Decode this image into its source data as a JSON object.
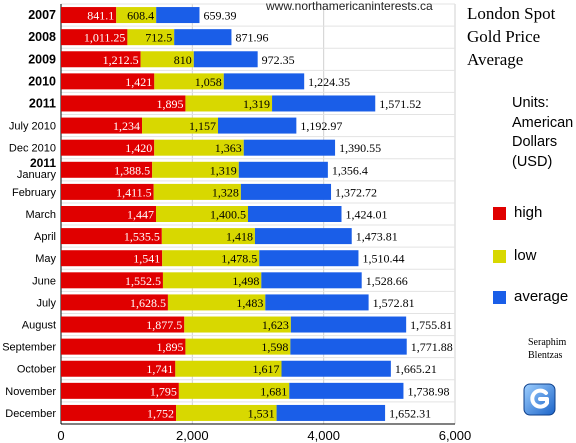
{
  "watermark": "www.northamericaninterests.ca",
  "title_lines": [
    "London Spot",
    "Gold Price",
    "Average"
  ],
  "units_lines": [
    "Units:",
    "American",
    "Dollars",
    "(USD)"
  ],
  "author_lines": [
    "Seraphim",
    "Blentzas"
  ],
  "legend": [
    {
      "label": "high",
      "color": "#e00000"
    },
    {
      "label": "low",
      "color": "#d8d800"
    },
    {
      "label": "average",
      "color": "#1a5ee8"
    }
  ],
  "chart_data": {
    "type": "bar",
    "orientation": "horizontal",
    "stacked": true,
    "categories": [
      {
        "label": "2007",
        "bold": true
      },
      {
        "label": "2008",
        "bold": true
      },
      {
        "label": "2009",
        "bold": true
      },
      {
        "label": "2010",
        "bold": true
      },
      {
        "label": "2011",
        "bold": true
      },
      {
        "label": "July 2010",
        "bold": false
      },
      {
        "label": "Dec 2010",
        "bold": false
      },
      {
        "label": "January",
        "label_top": "2011",
        "bold": false
      },
      {
        "label": "February",
        "bold": false
      },
      {
        "label": "March",
        "bold": false
      },
      {
        "label": "April",
        "bold": false
      },
      {
        "label": "May",
        "bold": false
      },
      {
        "label": "June",
        "bold": false
      },
      {
        "label": "July",
        "bold": false
      },
      {
        "label": "August",
        "bold": false
      },
      {
        "label": "September",
        "bold": false
      },
      {
        "label": "October",
        "bold": false
      },
      {
        "label": "November",
        "bold": false
      },
      {
        "label": "December",
        "bold": false
      }
    ],
    "series": [
      {
        "name": "high",
        "color": "#e00000",
        "values": [
          841.1,
          1011.25,
          1212.5,
          1421,
          1895,
          1234,
          1420,
          1388.5,
          1411.5,
          1447,
          1535.5,
          1541,
          1552.5,
          1628.5,
          1877.5,
          1895,
          1741,
          1795,
          1752
        ],
        "labels": [
          "841.1",
          "1,011.25",
          "1,212.5",
          "1,421",
          "1,895",
          "1,234",
          "1,420",
          "1,388.5",
          "1,411.5",
          "1,447",
          "1,535.5",
          "1,541",
          "1,552.5",
          "1,628.5",
          "1,877.5",
          "1,895",
          "1,741",
          "1,795",
          "1,752"
        ]
      },
      {
        "name": "low",
        "color": "#d8d800",
        "values": [
          608.4,
          712.5,
          810,
          1058,
          1319,
          1157,
          1363,
          1319,
          1328,
          1400.5,
          1418,
          1478.5,
          1498,
          1483,
          1623,
          1598,
          1617,
          1681,
          1531
        ],
        "labels": [
          "608.4",
          "712.5",
          "810",
          "1,058",
          "1,319",
          "1,157",
          "1,363",
          "1,319",
          "1,328",
          "1,400.5",
          "1,418",
          "1,478.5",
          "1,498",
          "1,483",
          "1,623",
          "1,598",
          "1,617",
          "1,681",
          "1,531"
        ]
      },
      {
        "name": "average",
        "color": "#1a5ee8",
        "values": [
          659.39,
          871.96,
          972.35,
          1224.35,
          1571.52,
          1192.97,
          1390.55,
          1356.4,
          1372.72,
          1424.01,
          1473.81,
          1510.44,
          1528.66,
          1572.81,
          1755.81,
          1771.88,
          1665.21,
          1738.98,
          1652.31
        ],
        "labels": [
          "659.39",
          "871.96",
          "972.35",
          "1,224.35",
          "1,571.52",
          "1,192.97",
          "1,390.55",
          "1,356.4",
          "1,372.72",
          "1,424.01",
          "1,473.81",
          "1,510.44",
          "1,528.66",
          "1,572.81",
          "1,755.81",
          "1,771.88",
          "1,665.21",
          "1,738.98",
          "1,652.31"
        ]
      }
    ],
    "xlim": [
      0,
      6000
    ],
    "xticks": [
      0,
      2000,
      4000,
      6000
    ],
    "xtick_labels": [
      "0",
      "2,000",
      "4,000",
      "6,000"
    ],
    "grid": true
  }
}
